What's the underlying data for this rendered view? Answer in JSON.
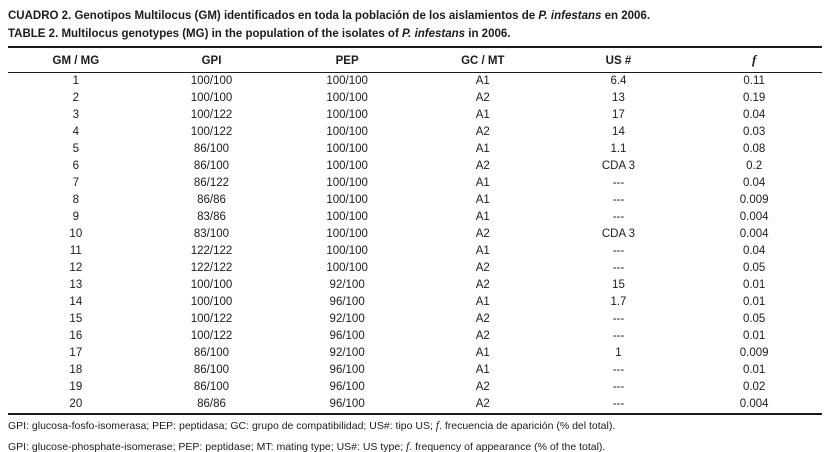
{
  "colors": {
    "background": "#ffffff",
    "text": "#1c1c1c",
    "rule": "#1a1a1a"
  },
  "title": {
    "es": {
      "pre": "CUADRO 2. Genotipos Multilocus (GM) identificados en toda la población de los aislamientos de ",
      "italic": "P. infestans",
      "post": " en 2006."
    },
    "en": {
      "pre": "TABLE 2. Multilocus genotypes (MG) in the population of the isolates of ",
      "italic": "P. infestans",
      "post": " in 2006."
    }
  },
  "table": {
    "headers": [
      "GM / MG",
      "GPI",
      "PEP",
      "GC / MT",
      "US #",
      "f"
    ],
    "rows": [
      [
        "1",
        "100/100",
        "100/100",
        "A1",
        "6.4",
        "0.11"
      ],
      [
        "2",
        "100/100",
        "100/100",
        "A2",
        "13",
        "0.19"
      ],
      [
        "3",
        "100/122",
        "100/100",
        "A1",
        "17",
        "0.04"
      ],
      [
        "4",
        "100/122",
        "100/100",
        "A2",
        "14",
        "0.03"
      ],
      [
        "5",
        "86/100",
        "100/100",
        "A1",
        "1.1",
        "0.08"
      ],
      [
        "6",
        "86/100",
        "100/100",
        "A2",
        "CDA 3",
        "0.2"
      ],
      [
        "7",
        "86/122",
        "100/100",
        "A1",
        "---",
        "0.04"
      ],
      [
        "8",
        "86/86",
        "100/100",
        "A1",
        "---",
        "0.009"
      ],
      [
        "9",
        "83/86",
        "100/100",
        "A1",
        "---",
        "0.004"
      ],
      [
        "10",
        "83/100",
        "100/100",
        "A2",
        "CDA 3",
        "0.004"
      ],
      [
        "11",
        "122/122",
        "100/100",
        "A1",
        "---",
        "0.04"
      ],
      [
        "12",
        "122/122",
        "100/100",
        "A2",
        "---",
        "0.05"
      ],
      [
        "13",
        "100/100",
        "92/100",
        "A2",
        "15",
        "0.01"
      ],
      [
        "14",
        "100/100",
        "96/100",
        "A1",
        "1.7",
        "0.01"
      ],
      [
        "15",
        "100/122",
        "92/100",
        "A2",
        "---",
        "0.05"
      ],
      [
        "16",
        "100/122",
        "96/100",
        "A2",
        "---",
        "0.01"
      ],
      [
        "17",
        "86/100",
        "92/100",
        "A1",
        "1",
        "0.009"
      ],
      [
        "18",
        "86/100",
        "96/100",
        "A1",
        "---",
        "0.01"
      ],
      [
        "19",
        "86/100",
        "96/100",
        "A2",
        "---",
        "0.02"
      ],
      [
        "20",
        "86/86",
        "96/100",
        "A2",
        "---",
        "0.004"
      ]
    ]
  },
  "footnotes": {
    "es": {
      "pre": "GPI: glucosa-fosfo-isomerasa; PEP: peptidasa; GC: grupo de compatibilidad; US#: tipo US; ",
      "italic": "f",
      "post": ". frecuencia de aparición (% del total)."
    },
    "en": {
      "pre": "GPI: glucose-phosphate-isomerase; PEP: peptidase; MT: mating type; US#: US type; ",
      "italic": "f",
      "post": ". frequency of appearance (% of the total)."
    }
  }
}
